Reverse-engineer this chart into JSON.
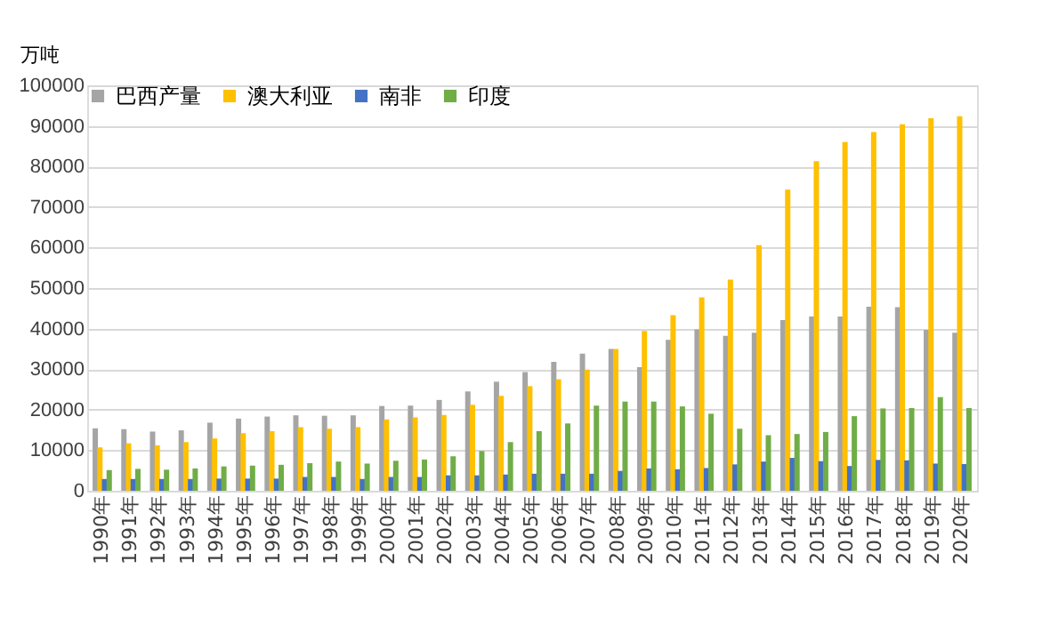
{
  "chart_data": {
    "type": "bar",
    "ylabel": "万吨",
    "categories": [
      "1990年",
      "1991年",
      "1992年",
      "1993年",
      "1994年",
      "1995年",
      "1996年",
      "1997年",
      "1998年",
      "1999年",
      "2000年",
      "2001年",
      "2002年",
      "2003年",
      "2004年",
      "2005年",
      "2006年",
      "2007年",
      "2008年",
      "2009年",
      "2010年",
      "2011年",
      "2012年",
      "2013年",
      "2014年",
      "2015年",
      "2016年",
      "2017年",
      "2018年",
      "2019年",
      "2020年"
    ],
    "series": [
      {
        "name": "巴西产量",
        "color": "#a5a5a5",
        "values": [
          15400,
          15200,
          14600,
          14900,
          16800,
          17800,
          18300,
          18600,
          18500,
          18600,
          20900,
          21000,
          22400,
          24500,
          26900,
          29300,
          31800,
          33800,
          35000,
          30500,
          37200,
          39800,
          38200,
          39000,
          42100,
          43000,
          43000,
          45400,
          45300,
          39700,
          39000
        ]
      },
      {
        "name": "澳大利亚",
        "color": "#ffc000",
        "values": [
          10700,
          11700,
          11200,
          12000,
          12900,
          14200,
          14700,
          15700,
          15300,
          15700,
          17600,
          18100,
          18700,
          21200,
          23400,
          25800,
          27500,
          29900,
          35000,
          39400,
          43300,
          47700,
          52100,
          60600,
          74300,
          81300,
          86000,
          88500,
          90400,
          91900,
          92400
        ]
      },
      {
        "name": "南非",
        "color": "#4472c4",
        "values": [
          2900,
          2900,
          2900,
          2900,
          3000,
          3000,
          3000,
          3400,
          3400,
          2900,
          3400,
          3400,
          3800,
          3800,
          4000,
          4200,
          4200,
          4200,
          4900,
          5500,
          5300,
          5600,
          6500,
          7200,
          8100,
          7300,
          6100,
          7600,
          7500,
          6700,
          6600
        ]
      },
      {
        "name": "印度",
        "color": "#70ad47",
        "values": [
          5100,
          5400,
          5200,
          5500,
          6000,
          6200,
          6400,
          6800,
          7200,
          6700,
          7400,
          7700,
          8500,
          9800,
          12000,
          14700,
          16600,
          21000,
          22000,
          22000,
          20800,
          19000,
          15300,
          13700,
          14000,
          14500,
          18400,
          20300,
          20400,
          23100,
          20400
        ]
      }
    ],
    "ylim": [
      0,
      100000
    ],
    "yticks": [
      0,
      10000,
      20000,
      30000,
      40000,
      50000,
      60000,
      70000,
      80000,
      90000,
      100000
    ],
    "grid": "y",
    "legend": "top left"
  }
}
